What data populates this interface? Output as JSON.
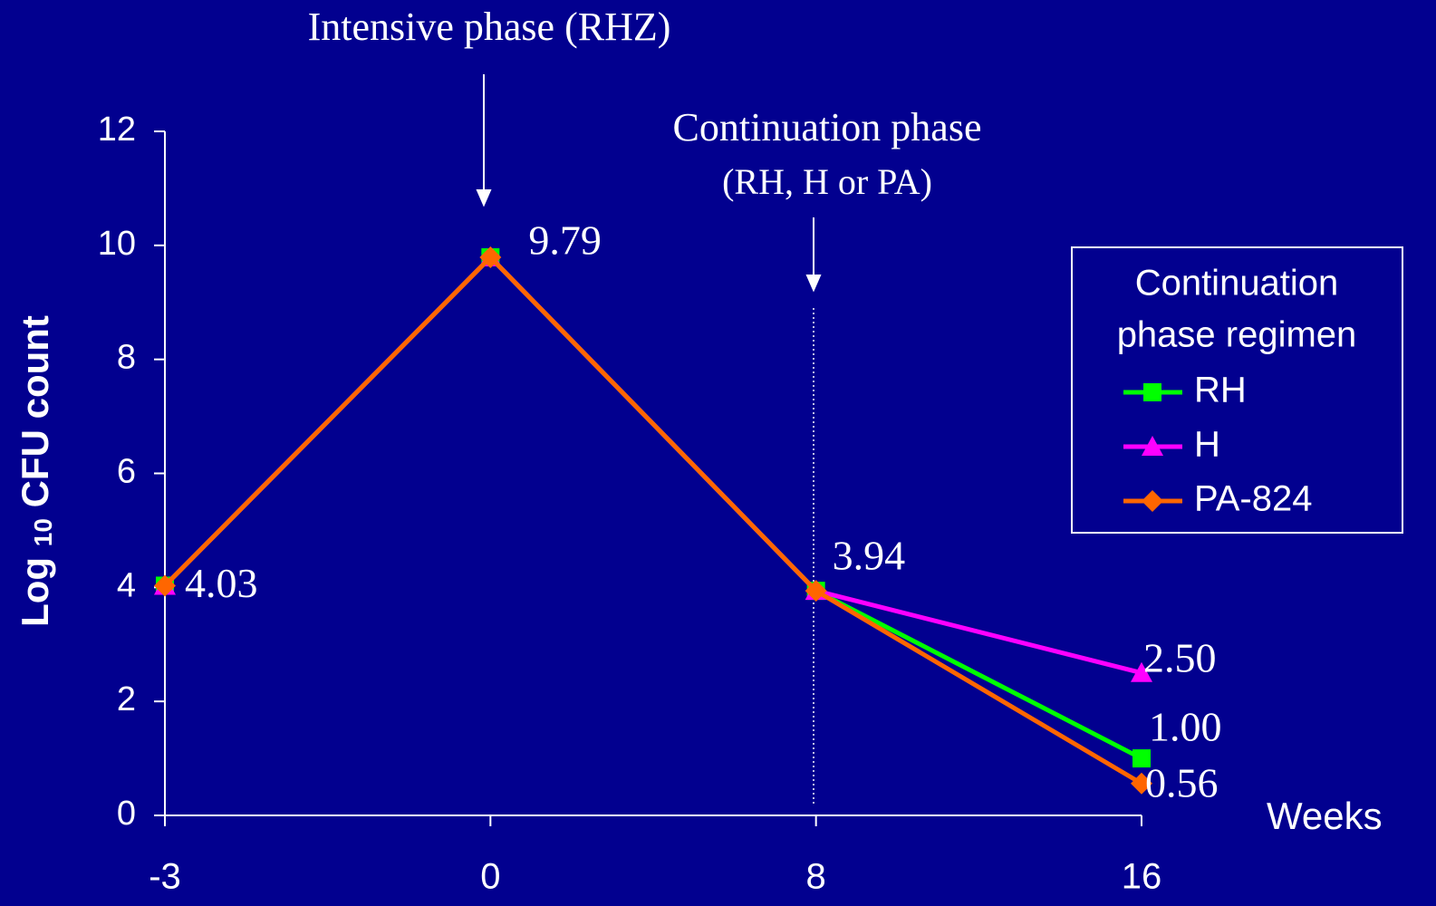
{
  "chart_data": {
    "type": "line",
    "annotations": [
      "Intensive phase (RHZ)",
      "Continuation phase",
      "(RH, H or PA)"
    ],
    "ylabel": [
      "Log",
      "10",
      "CFU count"
    ],
    "xlabel": "Weeks",
    "categories": [
      "-3",
      "0",
      "8",
      "16"
    ],
    "ylim": [
      0,
      12
    ],
    "yticks": [
      0,
      2,
      4,
      6,
      8,
      10,
      12
    ],
    "legend_title": [
      "Continuation",
      "phase regimen"
    ],
    "legend": "right",
    "series": [
      {
        "name": "RH",
        "color": "#00ff00",
        "marker": "square",
        "values": [
          4.03,
          9.79,
          3.94,
          1.0
        ],
        "value_labels": [
          "4.03",
          "9.79",
          "3.94",
          "1.00"
        ]
      },
      {
        "name": "H",
        "color": "#ff00ff",
        "marker": "triangle",
        "values": [
          4.03,
          9.79,
          3.94,
          2.5
        ],
        "value_labels": [
          null,
          null,
          null,
          "2.50"
        ]
      },
      {
        "name": "PA-824",
        "color": "#ff6600",
        "marker": "diamond",
        "values": [
          4.03,
          9.79,
          3.94,
          0.56
        ],
        "value_labels": [
          null,
          null,
          null,
          "0.56"
        ]
      }
    ]
  }
}
